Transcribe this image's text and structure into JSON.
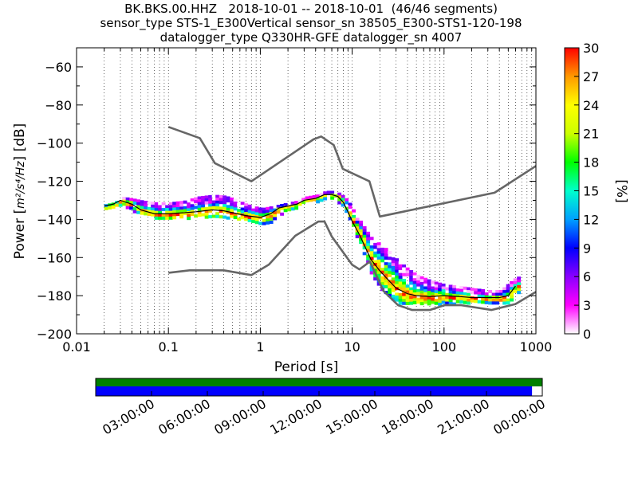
{
  "title": {
    "line1": "BK.BKS.00.HHZ   2018-10-01 -- 2018-10-01  (46/46 segments)",
    "line2": "sensor_type STS-1_E300Vertical sensor_sn 38505_E300-STS1-120-198",
    "line3": "datalogger_type Q330HR-GFE datalogger_sn 4007"
  },
  "chart_data": {
    "type": "heatmap",
    "xlabel": "Period [s]",
    "ylabel_prefix": "Power [",
    "ylabel_unit": "m²/s⁴/Hz",
    "ylabel_suffix": "] [dB]",
    "x_scale": "log",
    "xlim": [
      0.01,
      1000
    ],
    "ylim": [
      -200,
      -50
    ],
    "x_tick_labels": [
      "0.01",
      "0.1",
      "1",
      "10",
      "100",
      "1000"
    ],
    "x_ticks": [
      0.01,
      0.1,
      1,
      10,
      100,
      1000
    ],
    "y_ticks": [
      -200,
      -180,
      -160,
      -140,
      -120,
      -100,
      -80,
      -60
    ],
    "y_tick_labels": [
      "−200",
      "−180",
      "−160",
      "−140",
      "−120",
      "−100",
      "−80",
      "−60"
    ],
    "grid": "dotted vertical at minor log ticks",
    "colorbar": {
      "label": "[%]",
      "range": [
        0,
        30
      ],
      "ticks": [
        0,
        3,
        6,
        9,
        12,
        15,
        18,
        21,
        24,
        27,
        30
      ],
      "tick_labels": [
        "0",
        "3",
        "6",
        "9",
        "12",
        "15",
        "18",
        "21",
        "24",
        "27",
        "30"
      ],
      "colors": [
        "#ffffff",
        "#ff00ff",
        "#8a00ff",
        "#0000ff",
        "#00a0ff",
        "#00ffcc",
        "#00ff00",
        "#ccff00",
        "#ffff00",
        "#ff9900",
        "#ff0000"
      ]
    },
    "noise_model_color": "#666666",
    "high_noise_model": {
      "x": [
        0.1,
        0.22,
        0.32,
        0.8,
        3.8,
        4.6,
        6.3,
        7.9,
        15.4,
        20,
        354.8,
        1000
      ],
      "y": [
        -91.5,
        -97.4,
        -110.5,
        -120,
        -98,
        -96.5,
        -101,
        -113.5,
        -120,
        -138.5,
        -126,
        -112
      ]
    },
    "low_noise_model": {
      "x": [
        0.1,
        0.17,
        0.4,
        0.8,
        1.24,
        2.4,
        4.3,
        5,
        6,
        10,
        12,
        15.6,
        21.9,
        31.6,
        45,
        70,
        101,
        154,
        328,
        600,
        1000
      ],
      "y": [
        -168,
        -166.7,
        -166.7,
        -169.2,
        -163.7,
        -148.6,
        -141.1,
        -141.1,
        -149,
        -163.8,
        -166.2,
        -162.1,
        -177.5,
        -185,
        -187.5,
        -187.5,
        -185,
        -185,
        -187.5,
        -184.4,
        -178
      ]
    },
    "psd_mode_line": {
      "x": [
        0.02,
        0.025,
        0.03,
        0.04,
        0.05,
        0.07,
        0.1,
        0.15,
        0.2,
        0.3,
        0.4,
        0.5,
        0.7,
        1,
        1.3,
        1.6,
        2,
        2.5,
        3,
        4,
        5,
        6,
        7,
        8,
        9,
        10,
        12,
        14,
        16,
        20,
        25,
        30,
        40,
        50,
        70,
        100,
        150,
        200,
        300,
        400,
        500,
        600
      ],
      "y": [
        -133,
        -132,
        -130,
        -132,
        -135,
        -137,
        -137,
        -136.5,
        -136,
        -135,
        -135.5,
        -136.5,
        -138,
        -139,
        -137,
        -134,
        -133,
        -132,
        -130,
        -129,
        -127,
        -127,
        -128,
        -131,
        -136,
        -141,
        -148,
        -155,
        -161,
        -167,
        -172,
        -176,
        -179,
        -180,
        -180.5,
        -180,
        -180.5,
        -181,
        -181,
        -181,
        -180,
        -175
      ]
    },
    "psd_spread_top": [
      -132,
      -131,
      -128,
      -129,
      -130,
      -131,
      -131,
      -130,
      -128,
      -127,
      -127.5,
      -129,
      -132,
      -134,
      -133,
      -132,
      -131,
      -130,
      -128,
      -127,
      -125,
      -125,
      -126,
      -128,
      -131,
      -135,
      -141,
      -146,
      -150,
      -153,
      -157,
      -161,
      -166,
      -169,
      -172,
      -174,
      -175,
      -176,
      -177,
      -177,
      -173,
      -170
    ],
    "psd_spread_bottom": [
      -134,
      -133,
      -132,
      -135,
      -137,
      -139,
      -140,
      -139,
      -138,
      -138,
      -138.5,
      -139,
      -140,
      -143,
      -141,
      -137,
      -135,
      -133,
      -131,
      -130,
      -129,
      -129,
      -131,
      -134,
      -139,
      -145,
      -153,
      -161,
      -170,
      -176,
      -181,
      -183,
      -184,
      -184,
      -184,
      -184,
      -183.5,
      -183,
      -183,
      -184,
      -183,
      -178
    ]
  },
  "timeline": {
    "labels": [
      "03:00:00",
      "06:00:00",
      "09:00:00",
      "12:00:00",
      "15:00:00",
      "18:00:00",
      "21:00:00",
      "00:00:00"
    ],
    "available_color": "#008000",
    "used_color": "#0000ff",
    "used_fraction": 0.977
  }
}
